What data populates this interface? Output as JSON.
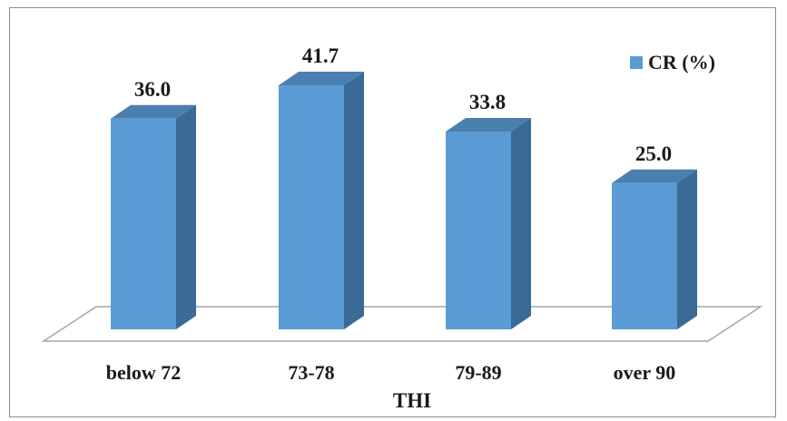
{
  "chart_data": {
    "type": "bar",
    "categories": [
      "below 72",
      "73-78",
      "79-89",
      "over 90"
    ],
    "series": [
      {
        "name": "CR (%)",
        "values": [
          36.0,
          41.7,
          33.8,
          25.0
        ]
      }
    ],
    "data_labels": [
      "36.0",
      "41.7",
      "33.8",
      "25.0"
    ],
    "xlabel": "THI",
    "ylabel": "",
    "ylim": [
      0,
      45
    ],
    "grid": false,
    "legend_position": "top-right",
    "style": "3d-column",
    "colors": {
      "bar_front": "#5b9bd5",
      "bar_side": "#3a6a96",
      "bar_top": "#4a7fb0",
      "floor_stroke": "#a6a6a6"
    }
  }
}
